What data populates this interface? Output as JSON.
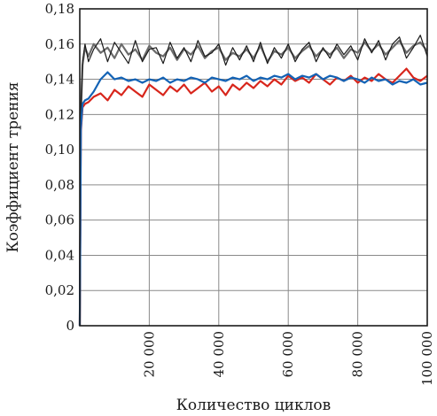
{
  "chart_data": {
    "type": "line",
    "title": "",
    "xlabel": "Количество циклов",
    "ylabel": "Коэффициент трения",
    "xlim": [
      0,
      100000
    ],
    "ylim": [
      0,
      0.18
    ],
    "grid": true,
    "legend": "none",
    "x_ticks": [
      {
        "value": 20000,
        "label": "20 000"
      },
      {
        "value": 40000,
        "label": "40 000"
      },
      {
        "value": 60000,
        "label": "60 000"
      },
      {
        "value": 80000,
        "label": "80 000"
      },
      {
        "value": 100000,
        "label": "100 000"
      }
    ],
    "y_ticks": [
      {
        "value": 0,
        "label": "0"
      },
      {
        "value": 0.02,
        "label": "0,02"
      },
      {
        "value": 0.04,
        "label": "0,04"
      },
      {
        "value": 0.06,
        "label": "0,06"
      },
      {
        "value": 0.08,
        "label": "0,08"
      },
      {
        "value": 0.1,
        "label": "0,10"
      },
      {
        "value": 0.12,
        "label": "0,12"
      },
      {
        "value": 0.14,
        "label": "0,14"
      },
      {
        "value": 0.16,
        "label": "0,16"
      },
      {
        "value": 0.18,
        "label": "0,18"
      }
    ],
    "series": [
      {
        "color": "#6b6b6b",
        "x": [
          0,
          300,
          800,
          1500,
          2500,
          4000,
          6000,
          8000,
          10000,
          12000,
          14000,
          16000,
          18000,
          20000,
          22000,
          24000,
          26000,
          28000,
          30000,
          32000,
          34000,
          36000,
          38000,
          40000,
          42000,
          44000,
          46000,
          48000,
          50000,
          52000,
          54000,
          56000,
          58000,
          60000,
          62000,
          64000,
          66000,
          68000,
          70000,
          72000,
          74000,
          76000,
          78000,
          80000,
          82000,
          84000,
          86000,
          88000,
          90000,
          92000,
          94000,
          96000,
          98000,
          100000
        ],
        "y": [
          0.0,
          0.12,
          0.148,
          0.158,
          0.153,
          0.16,
          0.155,
          0.158,
          0.152,
          0.16,
          0.154,
          0.157,
          0.151,
          0.159,
          0.155,
          0.153,
          0.158,
          0.151,
          0.157,
          0.154,
          0.159,
          0.152,
          0.156,
          0.158,
          0.151,
          0.155,
          0.153,
          0.157,
          0.152,
          0.159,
          0.15,
          0.156,
          0.154,
          0.158,
          0.152,
          0.156,
          0.159,
          0.153,
          0.157,
          0.154,
          0.158,
          0.152,
          0.157,
          0.155,
          0.161,
          0.156,
          0.16,
          0.154,
          0.158,
          0.162,
          0.155,
          0.159,
          0.161,
          0.156
        ]
      },
      {
        "color": "#1a1a1a",
        "x": [
          0,
          300,
          800,
          1500,
          2500,
          4000,
          6000,
          8000,
          10000,
          12000,
          14000,
          16000,
          18000,
          20000,
          22000,
          24000,
          26000,
          28000,
          30000,
          32000,
          34000,
          36000,
          38000,
          40000,
          42000,
          44000,
          46000,
          48000,
          50000,
          52000,
          54000,
          56000,
          58000,
          60000,
          62000,
          64000,
          66000,
          68000,
          70000,
          72000,
          74000,
          76000,
          78000,
          80000,
          82000,
          84000,
          86000,
          88000,
          90000,
          92000,
          94000,
          96000,
          98000,
          100000
        ],
        "y": [
          0.0,
          0.118,
          0.15,
          0.16,
          0.15,
          0.157,
          0.163,
          0.15,
          0.161,
          0.155,
          0.149,
          0.162,
          0.15,
          0.157,
          0.158,
          0.149,
          0.161,
          0.152,
          0.158,
          0.15,
          0.162,
          0.153,
          0.155,
          0.16,
          0.148,
          0.158,
          0.151,
          0.159,
          0.15,
          0.161,
          0.149,
          0.158,
          0.152,
          0.16,
          0.15,
          0.157,
          0.161,
          0.15,
          0.158,
          0.152,
          0.16,
          0.154,
          0.159,
          0.151,
          0.163,
          0.155,
          0.162,
          0.151,
          0.16,
          0.164,
          0.152,
          0.158,
          0.165,
          0.153
        ]
      },
      {
        "color": "#d8261c",
        "x": [
          0,
          300,
          800,
          1500,
          2500,
          4000,
          6000,
          8000,
          10000,
          12000,
          14000,
          16000,
          18000,
          20000,
          22000,
          24000,
          26000,
          28000,
          30000,
          32000,
          34000,
          36000,
          38000,
          40000,
          42000,
          44000,
          46000,
          48000,
          50000,
          52000,
          54000,
          56000,
          58000,
          60000,
          62000,
          64000,
          66000,
          68000,
          70000,
          72000,
          74000,
          76000,
          78000,
          80000,
          82000,
          84000,
          86000,
          88000,
          90000,
          92000,
          94000,
          96000,
          98000,
          100000
        ],
        "y": [
          0.0,
          0.11,
          0.124,
          0.126,
          0.127,
          0.13,
          0.132,
          0.128,
          0.134,
          0.131,
          0.136,
          0.133,
          0.13,
          0.137,
          0.134,
          0.131,
          0.136,
          0.133,
          0.137,
          0.132,
          0.135,
          0.138,
          0.133,
          0.136,
          0.131,
          0.137,
          0.134,
          0.138,
          0.135,
          0.139,
          0.136,
          0.14,
          0.137,
          0.142,
          0.139,
          0.141,
          0.138,
          0.143,
          0.14,
          0.137,
          0.141,
          0.139,
          0.142,
          0.138,
          0.141,
          0.139,
          0.143,
          0.14,
          0.138,
          0.142,
          0.146,
          0.141,
          0.139,
          0.142
        ]
      },
      {
        "color": "#1463b5",
        "x": [
          0,
          300,
          800,
          1500,
          2500,
          4000,
          6000,
          8000,
          10000,
          12000,
          14000,
          16000,
          18000,
          20000,
          22000,
          24000,
          26000,
          28000,
          30000,
          32000,
          34000,
          36000,
          38000,
          40000,
          42000,
          44000,
          46000,
          48000,
          50000,
          52000,
          54000,
          56000,
          58000,
          60000,
          62000,
          64000,
          66000,
          68000,
          70000,
          72000,
          74000,
          76000,
          78000,
          80000,
          82000,
          84000,
          86000,
          88000,
          90000,
          92000,
          94000,
          96000,
          98000,
          100000
        ],
        "y": [
          0.0,
          0.112,
          0.126,
          0.128,
          0.129,
          0.133,
          0.14,
          0.144,
          0.14,
          0.141,
          0.139,
          0.14,
          0.138,
          0.14,
          0.139,
          0.141,
          0.138,
          0.14,
          0.139,
          0.141,
          0.14,
          0.138,
          0.141,
          0.14,
          0.139,
          0.141,
          0.14,
          0.142,
          0.139,
          0.141,
          0.14,
          0.142,
          0.141,
          0.143,
          0.14,
          0.142,
          0.141,
          0.143,
          0.14,
          0.142,
          0.141,
          0.139,
          0.141,
          0.14,
          0.138,
          0.141,
          0.139,
          0.14,
          0.137,
          0.139,
          0.138,
          0.14,
          0.137,
          0.138
        ]
      }
    ]
  }
}
